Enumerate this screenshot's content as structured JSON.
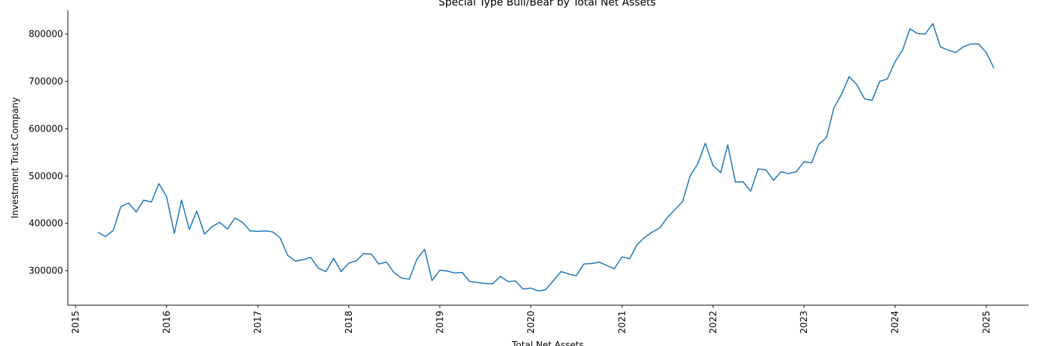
{
  "chart_data": {
    "type": "line",
    "title": "Special Type Bull/Bear by Total Net Assets",
    "xlabel": "Total Net Assets",
    "ylabel": "Investment Trust Company",
    "x_ticks": [
      "2015",
      "2016",
      "2017",
      "2018",
      "2019",
      "2020",
      "2021",
      "2022",
      "2023",
      "2024",
      "2025"
    ],
    "y_ticks": [
      300000,
      400000,
      500000,
      600000,
      700000,
      800000
    ],
    "xlim": [
      "2014-12-01",
      "2025-06-20"
    ],
    "ylim": [
      227000,
      850000
    ],
    "grid": false,
    "line_color": "#1f77b4",
    "series": [
      {
        "x": [
          "2015-04",
          "2015-05",
          "2015-06",
          "2015-07",
          "2015-08",
          "2015-09",
          "2015-10",
          "2015-11",
          "2015-12",
          "2016-01",
          "2016-02",
          "2016-03",
          "2016-04",
          "2016-05",
          "2016-06",
          "2016-07",
          "2016-08",
          "2016-09",
          "2016-10",
          "2016-11",
          "2016-12",
          "2017-01",
          "2017-02",
          "2017-03",
          "2017-04",
          "2017-05",
          "2017-06",
          "2017-07",
          "2017-08",
          "2017-09",
          "2017-10",
          "2017-11",
          "2017-12",
          "2018-01",
          "2018-02",
          "2018-03",
          "2018-04",
          "2018-05",
          "2018-06",
          "2018-07",
          "2018-08",
          "2018-09",
          "2018-10",
          "2018-11",
          "2018-12",
          "2019-01",
          "2019-02",
          "2019-03",
          "2019-04",
          "2019-05",
          "2019-06",
          "2019-07",
          "2019-08",
          "2019-09",
          "2019-10",
          "2019-11",
          "2019-12",
          "2020-01",
          "2020-02",
          "2020-03",
          "2020-04",
          "2020-05",
          "2020-06",
          "2020-07",
          "2020-08",
          "2020-09",
          "2020-10",
          "2020-11",
          "2020-12",
          "2021-01",
          "2021-02",
          "2021-03",
          "2021-04",
          "2021-05",
          "2021-06",
          "2021-07",
          "2021-08",
          "2021-09",
          "2021-10",
          "2021-11",
          "2021-12",
          "2022-01",
          "2022-02",
          "2022-03",
          "2022-04",
          "2022-05",
          "2022-06",
          "2022-07",
          "2022-08",
          "2022-09",
          "2022-10",
          "2022-11",
          "2022-12",
          "2023-01",
          "2023-02",
          "2023-03",
          "2023-04",
          "2023-05",
          "2023-06",
          "2023-07",
          "2023-08",
          "2023-09",
          "2023-10",
          "2023-11",
          "2023-12",
          "2024-01",
          "2024-02",
          "2024-03",
          "2024-04",
          "2024-05",
          "2024-06",
          "2024-07",
          "2024-08",
          "2024-09",
          "2024-10",
          "2024-11",
          "2024-12",
          "2025-01",
          "2025-02"
        ],
        "values": [
          381000,
          372000,
          385000,
          435000,
          443000,
          424000,
          449000,
          445000,
          484000,
          456000,
          379000,
          449000,
          387000,
          426000,
          377000,
          393000,
          402000,
          388000,
          411000,
          402000,
          384000,
          383000,
          384000,
          382000,
          369000,
          332000,
          320000,
          323000,
          328000,
          305000,
          298000,
          326000,
          298000,
          316000,
          321000,
          336000,
          335000,
          314000,
          318000,
          296000,
          284000,
          282000,
          324000,
          345000,
          279000,
          301000,
          299000,
          295000,
          296000,
          277000,
          275000,
          273000,
          272000,
          288000,
          277000,
          278000,
          261000,
          263000,
          257000,
          260000,
          279000,
          298000,
          293000,
          289000,
          314000,
          315000,
          318000,
          311000,
          304000,
          329000,
          325000,
          354000,
          370000,
          381000,
          390000,
          412000,
          429000,
          446000,
          500000,
          526000,
          569000,
          522000,
          507000,
          566000,
          487000,
          488000,
          468000,
          515000,
          513000,
          491000,
          509000,
          505000,
          509000,
          530000,
          528000,
          567000,
          581000,
          644000,
          673000,
          710000,
          693000,
          663000,
          660000,
          700000,
          705000,
          741000,
          767000,
          811000,
          801000,
          800000,
          822000,
          773000,
          766000,
          761000,
          773000,
          779000,
          779000,
          761000,
          728000
        ]
      }
    ]
  }
}
